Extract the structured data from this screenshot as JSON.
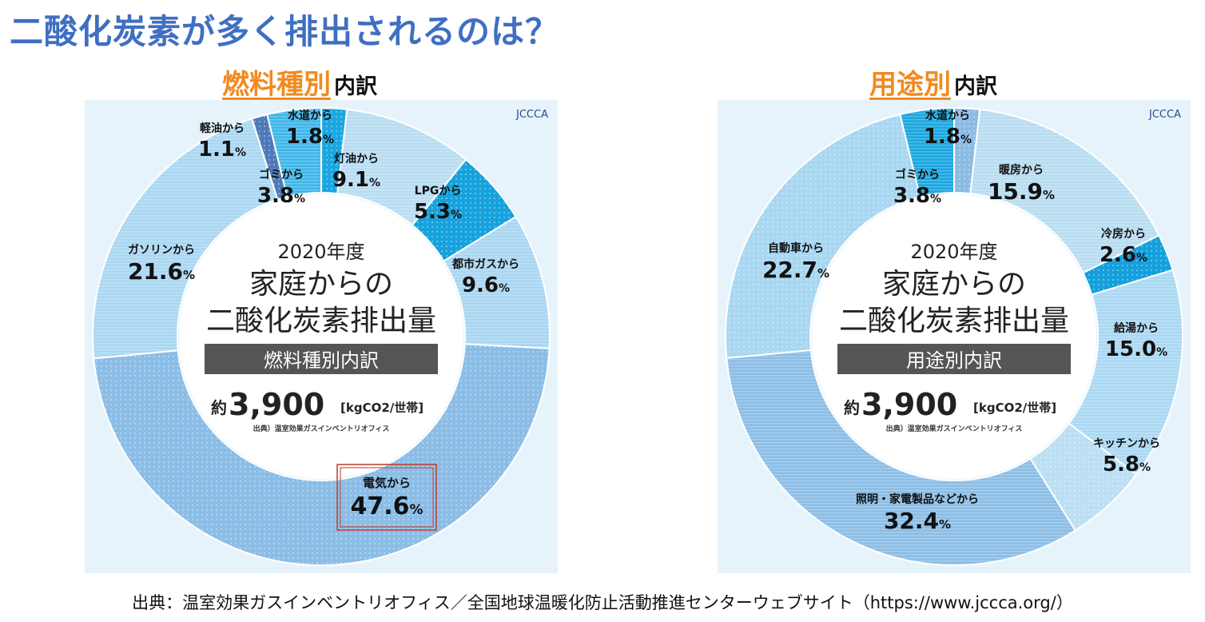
{
  "page": {
    "title": "二酸化炭素が多く排出されるのは？",
    "source_note": "出典：温室効果ガスインベントリオフィス／全国地球温暖化防止活動推進センターウェブサイト（https://www.jccca.org/）"
  },
  "center_common": {
    "year": "2020年度",
    "line1": "家庭からの",
    "line2": "二酸化炭素排出量",
    "total_prefix": "約",
    "total_value": "3,900",
    "total_unit": "[kgCO2/世帯]",
    "source": "出典）温室効果ガスインベントリオフィス",
    "logo_text": "JCCCA"
  },
  "headings": {
    "fuel_accent": "燃料種別",
    "fuel_rest": "内訳",
    "use_accent": "用途別",
    "use_rest": "内訳"
  },
  "chart_data": [
    {
      "type": "pie",
      "id": "fuel",
      "band_label": "燃料種別内訳",
      "slices": [
        {
          "label": "水道から",
          "value": 1.8,
          "color": "#1aa7e0"
        },
        {
          "label": "灯油から",
          "value": 9.1,
          "color": "#b8dcf1"
        },
        {
          "label": "LPGから",
          "value": 5.3,
          "color": "#16a2dc"
        },
        {
          "label": "都市ガスから",
          "value": 9.6,
          "color": "#a9d6f1"
        },
        {
          "label": "電気から",
          "value": 47.6,
          "color": "#8bbde6",
          "highlight": true
        },
        {
          "label": "ガソリンから",
          "value": 21.6,
          "color": "#a9d7f2"
        },
        {
          "label": "軽油から",
          "value": 1.1,
          "color": "#4f79b8"
        },
        {
          "label": "ゴミから",
          "value": 3.8,
          "color": "#3fb6ea"
        }
      ]
    },
    {
      "type": "pie",
      "id": "use",
      "band_label": "用途別内訳",
      "slices": [
        {
          "label": "水道から",
          "value": 1.8,
          "color": "#8cbbe4"
        },
        {
          "label": "暖房から",
          "value": 15.9,
          "color": "#b8dcf1"
        },
        {
          "label": "冷房から",
          "value": 2.6,
          "color": "#14a0dc"
        },
        {
          "label": "給湯から",
          "value": 15.0,
          "color": "#aad8f3"
        },
        {
          "label": "キッチンから",
          "value": 5.8,
          "color": "#bcdff3"
        },
        {
          "label": "照明・家電製品などから",
          "value": 32.4,
          "color": "#8bbde6"
        },
        {
          "label": "自動車から",
          "value": 22.7,
          "color": "#a9d7f2"
        },
        {
          "label": "ゴミから",
          "value": 3.8,
          "color": "#1aa7e0"
        }
      ]
    }
  ]
}
